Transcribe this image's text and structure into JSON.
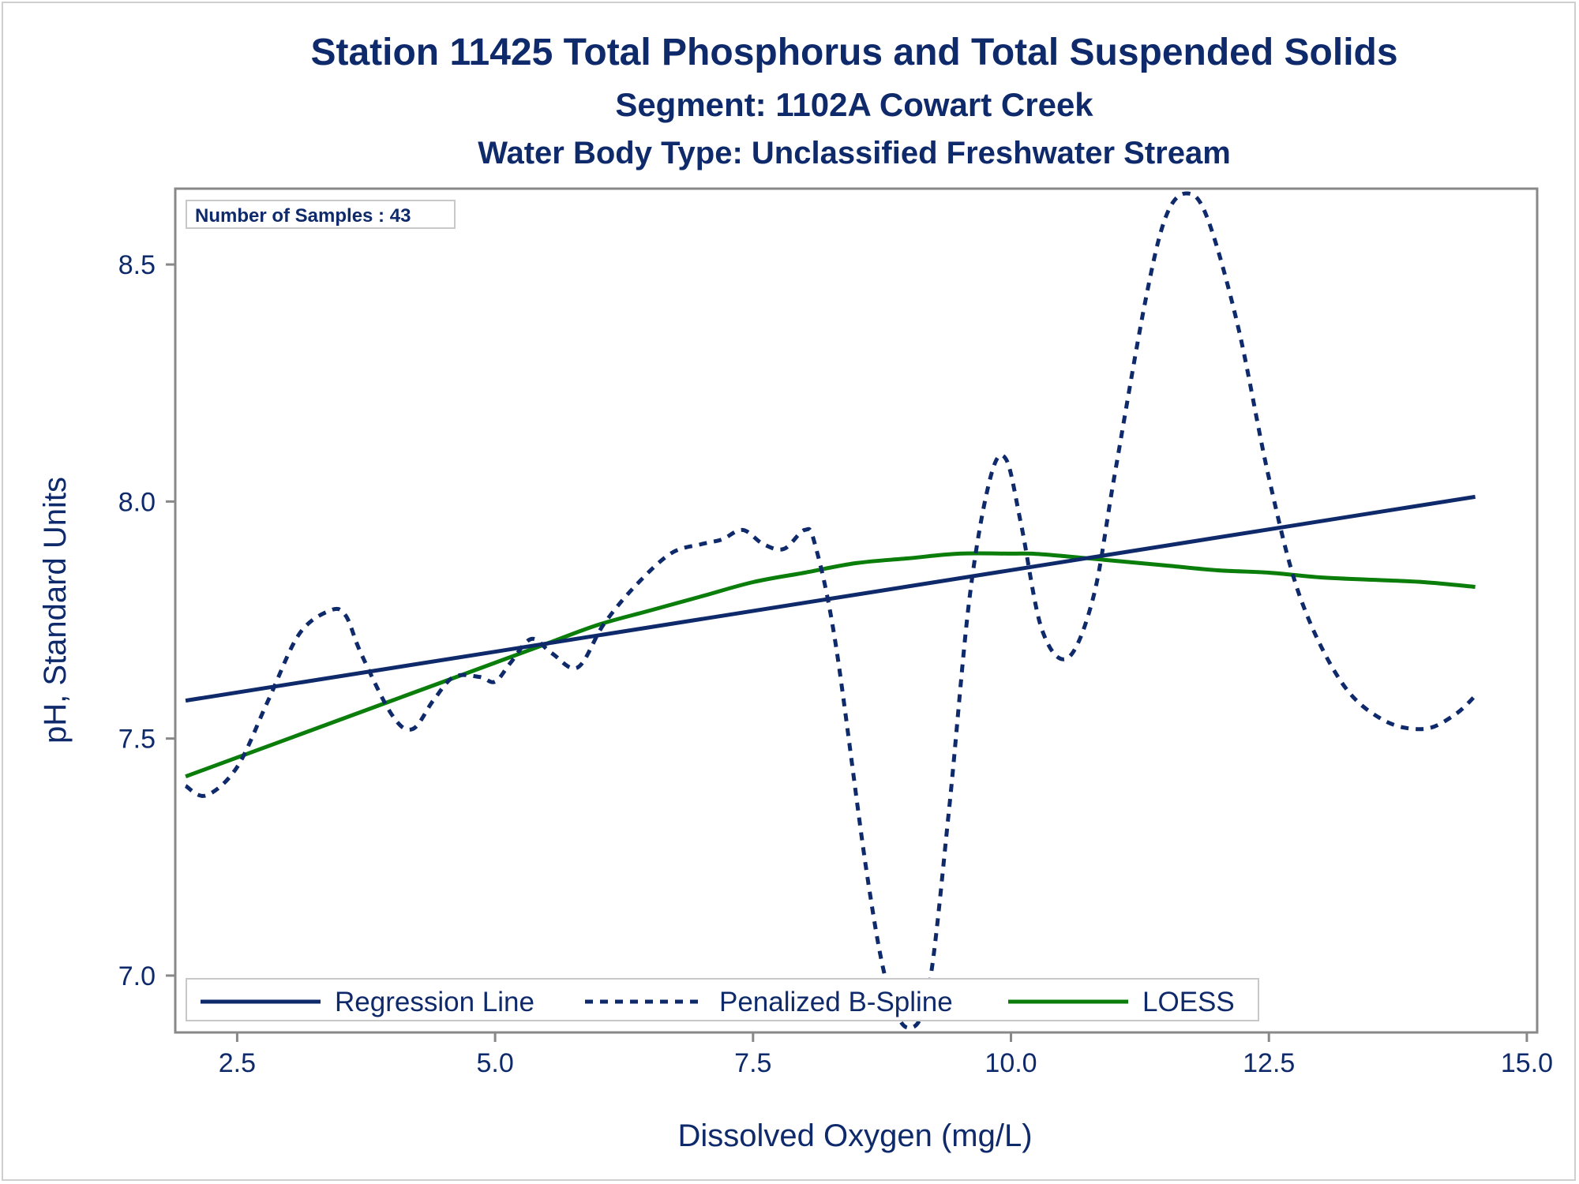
{
  "chart_data": {
    "type": "line",
    "title": "Station 11425  Total Phosphorus and Total Suspended Solids",
    "subtitle": "Segment: 1102A  Cowart Creek",
    "subtitle2": "Water Body Type: Unclassified Freshwater Stream",
    "xlabel": "Dissolved Oxygen (mg/L)",
    "ylabel": "pH, Standard Units",
    "xlim": [
      1.9,
      15.1
    ],
    "ylim": [
      6.88,
      8.66
    ],
    "x_ticks": [
      "2.5",
      "5.0",
      "7.5",
      "10.0",
      "12.5",
      "15.0"
    ],
    "y_ticks": [
      "7.0",
      "7.5",
      "8.0",
      "8.5"
    ],
    "inset_label": "Number of Samples : 43",
    "legend_position": "bottom-left",
    "grid": false,
    "series": [
      {
        "name": "Regression Line",
        "style": "solid",
        "color": "#0f2a6b",
        "x": [
          2.0,
          14.5
        ],
        "y": [
          7.58,
          8.01
        ]
      },
      {
        "name": "Penalized B-Spline",
        "style": "dashed",
        "color": "#0f2a6b",
        "x": [
          2.0,
          2.2,
          2.5,
          2.8,
          3.1,
          3.4,
          3.55,
          3.7,
          4.0,
          4.2,
          4.4,
          4.6,
          4.85,
          5.0,
          5.15,
          5.35,
          5.55,
          5.8,
          6.05,
          6.35,
          6.7,
          7.0,
          7.2,
          7.4,
          7.6,
          7.8,
          8.0,
          8.1,
          8.3,
          8.6,
          8.8,
          9.0,
          9.2,
          9.4,
          9.6,
          9.8,
          9.95,
          10.1,
          10.3,
          10.55,
          10.8,
          11.0,
          11.3,
          11.5,
          11.7,
          11.9,
          12.2,
          12.5,
          12.8,
          13.2,
          13.6,
          14.0,
          14.3,
          14.5
        ],
        "y": [
          7.4,
          7.38,
          7.44,
          7.58,
          7.72,
          7.77,
          7.76,
          7.68,
          7.55,
          7.52,
          7.58,
          7.63,
          7.63,
          7.62,
          7.66,
          7.71,
          7.68,
          7.65,
          7.74,
          7.82,
          7.89,
          7.91,
          7.92,
          7.94,
          7.91,
          7.9,
          7.94,
          7.91,
          7.7,
          7.22,
          6.98,
          6.89,
          6.97,
          7.35,
          7.8,
          8.05,
          8.09,
          7.95,
          7.73,
          7.67,
          7.8,
          8.05,
          8.42,
          8.6,
          8.65,
          8.6,
          8.37,
          8.05,
          7.8,
          7.62,
          7.54,
          7.52,
          7.55,
          7.59
        ]
      },
      {
        "name": "LOESS",
        "style": "solid",
        "color": "#0a7d0a",
        "x": [
          2.0,
          2.5,
          3.0,
          3.5,
          4.0,
          4.5,
          5.0,
          5.5,
          6.0,
          6.5,
          7.0,
          7.5,
          8.0,
          8.5,
          9.0,
          9.5,
          10.0,
          10.2,
          10.5,
          11.0,
          11.5,
          12.0,
          12.5,
          13.0,
          13.5,
          14.0,
          14.5
        ],
        "y": [
          7.42,
          7.46,
          7.5,
          7.54,
          7.58,
          7.62,
          7.66,
          7.7,
          7.74,
          7.77,
          7.8,
          7.83,
          7.85,
          7.87,
          7.88,
          7.89,
          7.89,
          7.89,
          7.885,
          7.875,
          7.865,
          7.855,
          7.85,
          7.84,
          7.835,
          7.83,
          7.82
        ]
      }
    ]
  }
}
